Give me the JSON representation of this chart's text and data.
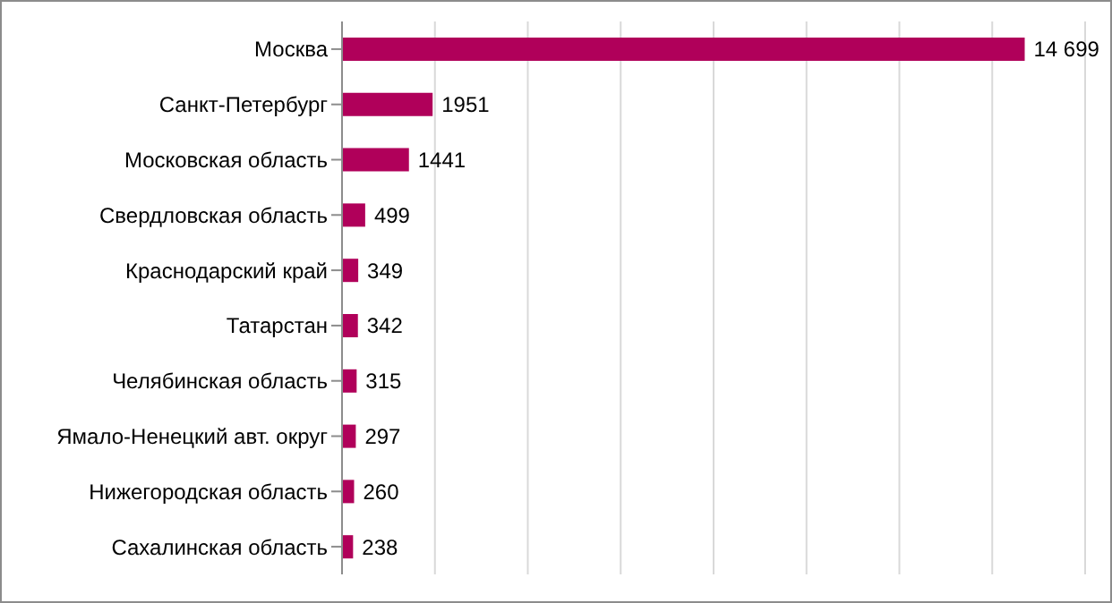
{
  "chart_data": {
    "type": "bar",
    "orientation": "horizontal",
    "categories": [
      "Москва",
      "Санкт-Петербург",
      "Московская область",
      "Свердловская  область",
      "Краснодарский  край",
      "Татарстан",
      "Челябинская  область",
      "Ямало-Ненецкий  авт. округ",
      "Нижегородская  область",
      "Сахалинская  область"
    ],
    "values": [
      14699,
      1951,
      1441,
      499,
      349,
      342,
      315,
      297,
      260,
      238
    ],
    "value_labels": [
      "14 699",
      "1951",
      "1441",
      "499",
      "349",
      "342",
      "315",
      "297",
      "260",
      "238"
    ],
    "color": "#b0005a",
    "xlim": [
      0,
      16000
    ],
    "xticks": [
      {
        "value": 0,
        "label": null
      },
      {
        "value": 2000,
        "label": null
      },
      {
        "value": 4000,
        "label": null
      },
      {
        "value": 6000,
        "label": null
      },
      {
        "value": 8000,
        "label": null
      },
      {
        "value": 10000,
        "label": null
      },
      {
        "value": 12000,
        "label": null
      },
      {
        "value": 14000,
        "label": null
      },
      {
        "value": 16000,
        "label": null
      }
    ],
    "grid": "x",
    "tick_labels": "y"
  }
}
